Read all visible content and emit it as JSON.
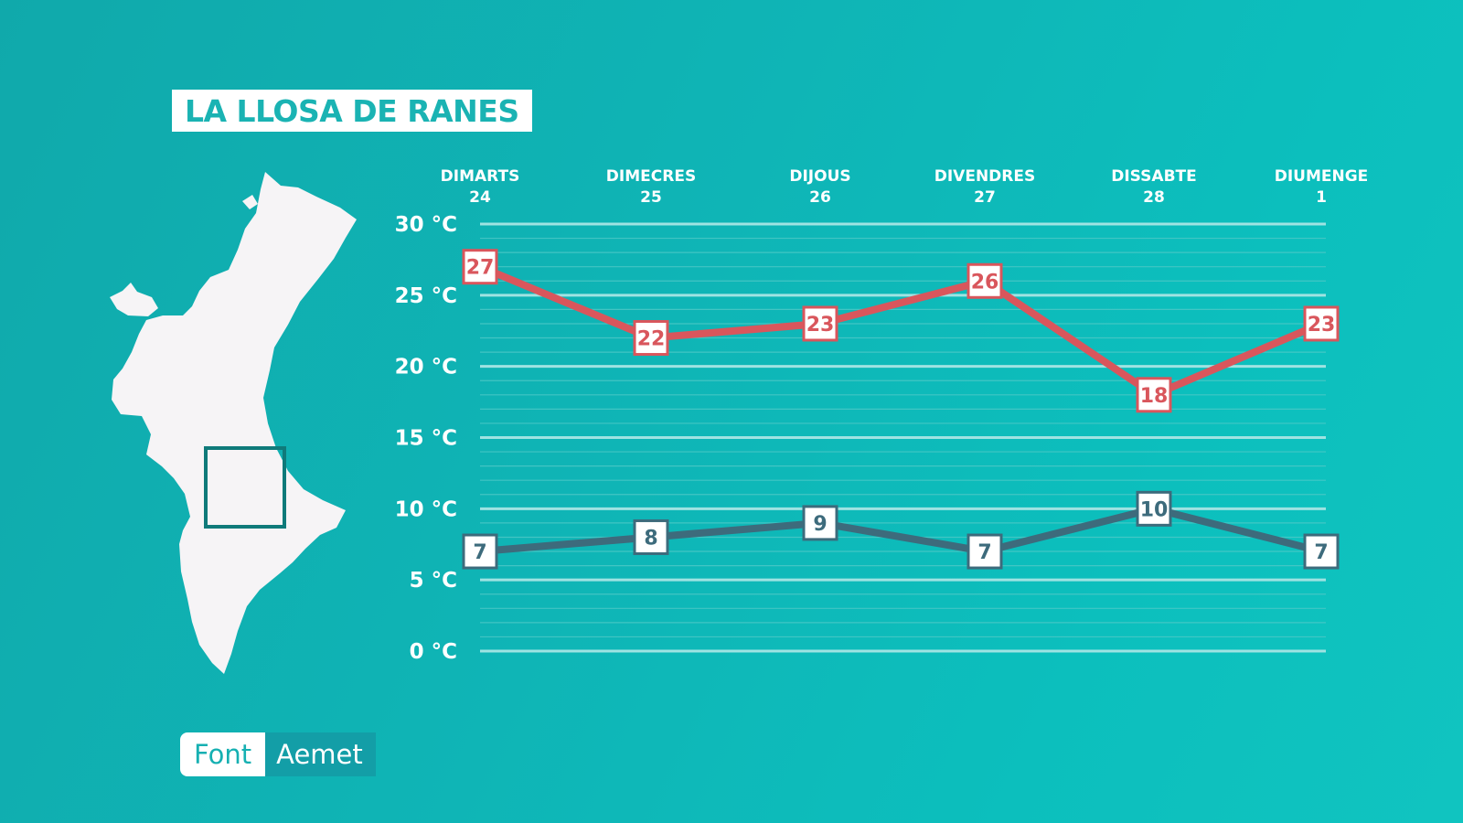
{
  "title": "LA LLOSA DE RANES",
  "source": {
    "label": "Font",
    "value": "Aemet"
  },
  "chart_data": {
    "type": "line",
    "categories": [
      {
        "day": "DIMARTS",
        "date": "24"
      },
      {
        "day": "DIMECRES",
        "date": "25"
      },
      {
        "day": "DIJOUS",
        "date": "26"
      },
      {
        "day": "DIVENDRES",
        "date": "27"
      },
      {
        "day": "DISSABTE",
        "date": "28"
      },
      {
        "day": "DIUMENGE",
        "date": "1"
      }
    ],
    "series": [
      {
        "values": [
          27,
          22,
          23,
          26,
          18,
          23
        ],
        "color": "#d9565c"
      },
      {
        "values": [
          7,
          8,
          9,
          7,
          10,
          7
        ],
        "color": "#3d6b7c"
      }
    ],
    "yticks": [
      "0 °C",
      "5 °C",
      "10 °C",
      "15 °C",
      "20 °C",
      "25 °C",
      "30 °C"
    ],
    "ylim": [
      0,
      30
    ],
    "grid": true,
    "legend": "none"
  },
  "colors": {
    "background": "#0fb5b6",
    "map_fill": "#f6f4f6",
    "map_marker": "#0f7a7a",
    "grid_major": "#9fe3e2",
    "grid_minor": "#4fc9c7"
  },
  "icons": {
    "region_map": "valencian-community-map-icon"
  }
}
